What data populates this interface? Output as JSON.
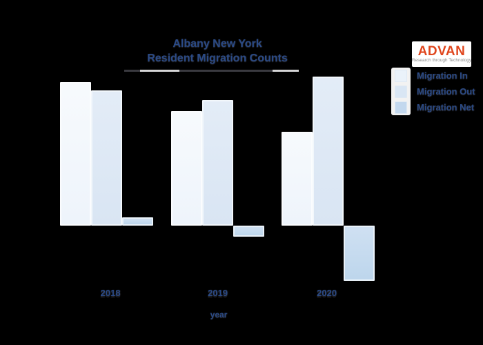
{
  "title": {
    "line1": "Albany New York",
    "line2": "Resident Migration Counts"
  },
  "logo": {
    "name": "ADVAN",
    "tagline": "Research through Technology",
    "text_color": "#e0461d",
    "bg_color": "#ffffff"
  },
  "legend": {
    "items": [
      {
        "label": "Migration In",
        "color": "#eaf2fa"
      },
      {
        "label": "Migration Out",
        "color": "#d9e6f4"
      },
      {
        "label": "Migration Net",
        "color": "#c3d8ee"
      }
    ]
  },
  "chart_data": {
    "type": "bar",
    "title": "Albany New York Resident Migration Counts",
    "categories": [
      "2018",
      "2019",
      "2020"
    ],
    "series": [
      {
        "name": "Migration In",
        "color": "#f3f8fd",
        "values": [
          5200,
          4150,
          3400
        ]
      },
      {
        "name": "Migration Out",
        "color": "#dde8f5",
        "values": [
          4900,
          4550,
          5400
        ]
      },
      {
        "name": "Migration Net",
        "color": "#c4d9ee",
        "values": [
          300,
          -400,
          -2000
        ]
      }
    ],
    "xlabel": "year",
    "ylabel": "",
    "ylim": [
      -2200,
      5500
    ],
    "grid": false,
    "y_axis_visible": false,
    "legend_position": "right-top"
  },
  "colors": {
    "background": "#000000",
    "text": "#2a4a86",
    "bar_in": "#f3f8fd",
    "bar_out": "#dde8f5",
    "bar_net": "#c4d9ee"
  }
}
